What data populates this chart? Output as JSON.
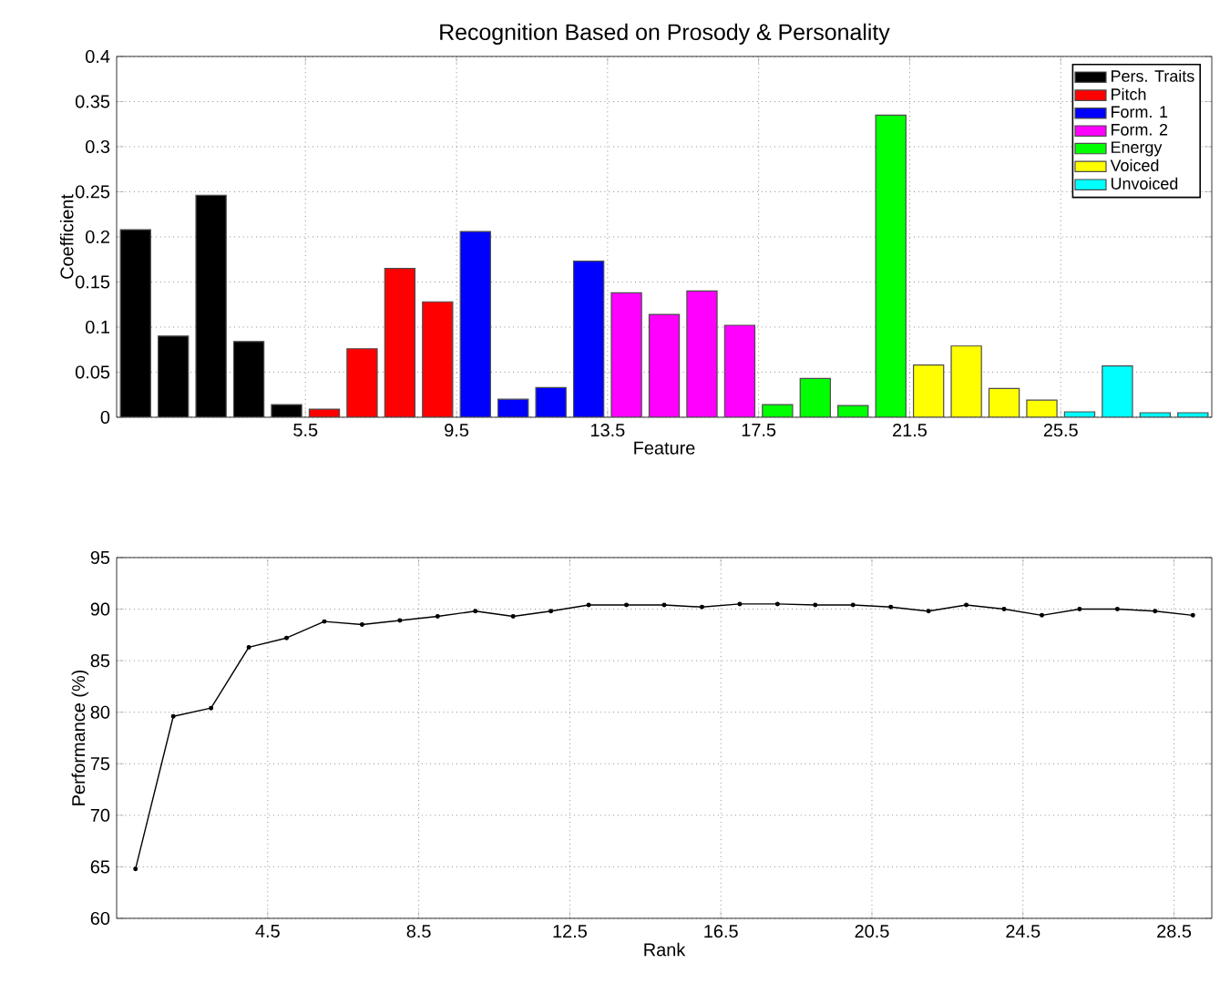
{
  "chart_data": [
    {
      "type": "bar",
      "title": "Recognition Based on Prosody & Personality",
      "xlabel": "Feature",
      "ylabel": "Coefficient",
      "xlim": [
        0.5,
        29.5
      ],
      "xticks": [
        5.5,
        9.5,
        13.5,
        17.5,
        21.5,
        25.5
      ],
      "ylim": [
        0,
        0.4
      ],
      "yticks": [
        0,
        0.05,
        0.1,
        0.15,
        0.2,
        0.25,
        0.3,
        0.35,
        0.4
      ],
      "grid": true,
      "legend": "top right",
      "series": [
        {
          "name": "Pers. Traits",
          "color": "#000000",
          "x": [
            1,
            2,
            3,
            4,
            5
          ],
          "values": [
            0.208,
            0.09,
            0.246,
            0.084,
            0.014
          ]
        },
        {
          "name": "Pitch",
          "color": "#ff0000",
          "x": [
            6,
            7,
            8,
            9
          ],
          "values": [
            0.009,
            0.076,
            0.165,
            0.128
          ]
        },
        {
          "name": "Form. 1",
          "color": "#0000ff",
          "x": [
            10,
            11,
            12,
            13
          ],
          "values": [
            0.206,
            0.02,
            0.033,
            0.173
          ]
        },
        {
          "name": "Form. 2",
          "color": "#ff00ff",
          "x": [
            14,
            15,
            16,
            17
          ],
          "values": [
            0.138,
            0.114,
            0.14,
            0.102
          ]
        },
        {
          "name": "Energy",
          "color": "#00ff00",
          "x": [
            18,
            19,
            20,
            21
          ],
          "values": [
            0.014,
            0.043,
            0.013,
            0.335
          ]
        },
        {
          "name": "Voiced",
          "color": "#ffff00",
          "x": [
            22,
            23,
            24,
            25
          ],
          "values": [
            0.058,
            0.079,
            0.032,
            0.019
          ]
        },
        {
          "name": "Unvoiced",
          "color": "#00ffff",
          "x": [
            26,
            27,
            28,
            29
          ],
          "values": [
            0.006,
            0.057,
            0.005,
            0.005
          ]
        }
      ]
    },
    {
      "type": "line",
      "xlabel": "Rank",
      "ylabel": "Performance (%)",
      "xlim": [
        0.5,
        29.5
      ],
      "xticks": [
        4.5,
        8.5,
        12.5,
        16.5,
        20.5,
        24.5,
        28.5
      ],
      "ylim": [
        60,
        95
      ],
      "yticks": [
        60,
        65,
        70,
        75,
        80,
        85,
        90,
        95
      ],
      "grid": true,
      "marker": "circle",
      "line_style": "solid",
      "x": [
        1,
        2,
        3,
        4,
        5,
        6,
        7,
        8,
        9,
        10,
        11,
        12,
        13,
        14,
        15,
        16,
        17,
        18,
        19,
        20,
        21,
        22,
        23,
        24,
        25,
        26,
        27,
        28,
        29
      ],
      "series": [
        {
          "color": "#000000",
          "values": [
            64.8,
            79.6,
            80.4,
            86.3,
            87.2,
            88.8,
            88.5,
            88.9,
            89.3,
            89.8,
            89.3,
            89.8,
            90.4,
            90.4,
            90.4,
            90.2,
            90.5,
            90.5,
            90.4,
            90.4,
            90.2,
            89.8,
            90.4,
            90.0,
            89.4,
            90.0,
            90.0,
            89.8,
            89.4
          ]
        }
      ]
    }
  ]
}
